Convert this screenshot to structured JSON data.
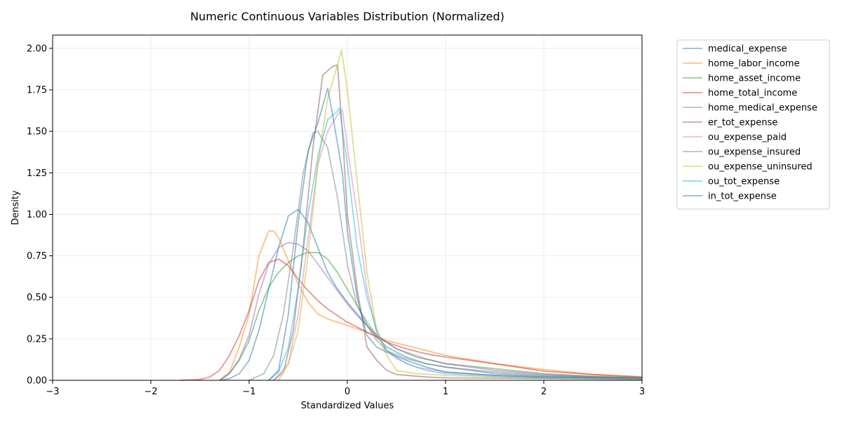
{
  "chart_data": {
    "type": "line",
    "title": "Numeric Continuous Variables Distribution (Normalized)",
    "xlabel": "Standardized Values",
    "ylabel": "Density",
    "xlim": [
      -3,
      3
    ],
    "ylim": [
      0,
      2.08
    ],
    "xticks": [
      -3,
      -2,
      -1,
      0,
      1,
      2,
      3
    ],
    "yticks": [
      0.0,
      0.25,
      0.5,
      0.75,
      1.0,
      1.25,
      1.5,
      1.75,
      2.0
    ],
    "xtick_labels": [
      "−3",
      "−2",
      "−1",
      "0",
      "1",
      "2",
      "3"
    ],
    "ytick_labels": [
      "0.00",
      "0.25",
      "0.50",
      "0.75",
      "1.00",
      "1.25",
      "1.50",
      "1.75",
      "2.00"
    ],
    "grid": true,
    "legend_position": "outside-right-top",
    "series": [
      {
        "name": "medical_expense",
        "color": "#1f77b4",
        "points": [
          [
            -1.3,
            0
          ],
          [
            -1.2,
            0.01
          ],
          [
            -1.1,
            0.04
          ],
          [
            -1.0,
            0.12
          ],
          [
            -0.9,
            0.3
          ],
          [
            -0.8,
            0.55
          ],
          [
            -0.7,
            0.8
          ],
          [
            -0.6,
            0.99
          ],
          [
            -0.5,
            1.03
          ],
          [
            -0.4,
            0.95
          ],
          [
            -0.3,
            0.8
          ],
          [
            -0.2,
            0.65
          ],
          [
            -0.1,
            0.55
          ],
          [
            0.0,
            0.47
          ],
          [
            0.1,
            0.4
          ],
          [
            0.2,
            0.33
          ],
          [
            0.3,
            0.26
          ],
          [
            0.4,
            0.2
          ],
          [
            0.6,
            0.14
          ],
          [
            0.8,
            0.1
          ],
          [
            1.0,
            0.08
          ],
          [
            1.5,
            0.04
          ],
          [
            2.0,
            0.025
          ],
          [
            2.5,
            0.02
          ],
          [
            3.0,
            0.015
          ]
        ]
      },
      {
        "name": "home_labor_income",
        "color": "#ff7f0e",
        "points": [
          [
            -1.3,
            0
          ],
          [
            -1.2,
            0.05
          ],
          [
            -1.1,
            0.2
          ],
          [
            -1.0,
            0.4
          ],
          [
            -0.9,
            0.75
          ],
          [
            -0.8,
            0.9
          ],
          [
            -0.75,
            0.9
          ],
          [
            -0.7,
            0.86
          ],
          [
            -0.6,
            0.72
          ],
          [
            -0.5,
            0.58
          ],
          [
            -0.4,
            0.47
          ],
          [
            -0.3,
            0.4
          ],
          [
            -0.2,
            0.37
          ],
          [
            -0.1,
            0.35
          ],
          [
            0.0,
            0.33
          ],
          [
            0.2,
            0.29
          ],
          [
            0.4,
            0.24
          ],
          [
            0.6,
            0.21
          ],
          [
            0.8,
            0.18
          ],
          [
            1.0,
            0.15
          ],
          [
            1.5,
            0.1
          ],
          [
            2.0,
            0.065
          ],
          [
            2.5,
            0.035
          ],
          [
            3.0,
            0.02
          ]
        ]
      },
      {
        "name": "home_asset_income",
        "color": "#2ca02c",
        "points": [
          [
            -1.3,
            0
          ],
          [
            -1.2,
            0.04
          ],
          [
            -1.1,
            0.12
          ],
          [
            -1.0,
            0.24
          ],
          [
            -0.9,
            0.42
          ],
          [
            -0.8,
            0.56
          ],
          [
            -0.7,
            0.65
          ],
          [
            -0.6,
            0.71
          ],
          [
            -0.5,
            0.75
          ],
          [
            -0.4,
            0.77
          ],
          [
            -0.3,
            0.77
          ],
          [
            -0.2,
            0.73
          ],
          [
            -0.1,
            0.65
          ],
          [
            0.0,
            0.55
          ],
          [
            0.1,
            0.45
          ],
          [
            0.2,
            0.35
          ],
          [
            0.3,
            0.27
          ],
          [
            0.5,
            0.19
          ],
          [
            0.7,
            0.14
          ],
          [
            1.0,
            0.1
          ],
          [
            1.5,
            0.07
          ],
          [
            2.0,
            0.04
          ],
          [
            2.5,
            0.025
          ],
          [
            3.0,
            0.015
          ]
        ]
      },
      {
        "name": "home_total_income",
        "color": "#d62728",
        "points": [
          [
            -1.7,
            0
          ],
          [
            -1.5,
            0.005
          ],
          [
            -1.4,
            0.02
          ],
          [
            -1.3,
            0.06
          ],
          [
            -1.2,
            0.15
          ],
          [
            -1.1,
            0.27
          ],
          [
            -1.0,
            0.42
          ],
          [
            -0.9,
            0.6
          ],
          [
            -0.8,
            0.71
          ],
          [
            -0.7,
            0.73
          ],
          [
            -0.6,
            0.69
          ],
          [
            -0.5,
            0.61
          ],
          [
            -0.4,
            0.54
          ],
          [
            -0.3,
            0.48
          ],
          [
            -0.2,
            0.43
          ],
          [
            -0.1,
            0.39
          ],
          [
            0.0,
            0.35
          ],
          [
            0.2,
            0.29
          ],
          [
            0.4,
            0.23
          ],
          [
            0.6,
            0.19
          ],
          [
            0.8,
            0.16
          ],
          [
            1.0,
            0.14
          ],
          [
            1.5,
            0.1
          ],
          [
            2.0,
            0.055
          ],
          [
            2.5,
            0.035
          ],
          [
            3.0,
            0.02
          ]
        ]
      },
      {
        "name": "home_medical_expense",
        "color": "#9467bd",
        "points": [
          [
            -1.3,
            0
          ],
          [
            -1.2,
            0.04
          ],
          [
            -1.1,
            0.13
          ],
          [
            -1.0,
            0.27
          ],
          [
            -0.9,
            0.52
          ],
          [
            -0.8,
            0.7
          ],
          [
            -0.7,
            0.8
          ],
          [
            -0.6,
            0.83
          ],
          [
            -0.5,
            0.82
          ],
          [
            -0.4,
            0.78
          ],
          [
            -0.3,
            0.7
          ],
          [
            -0.2,
            0.62
          ],
          [
            -0.1,
            0.54
          ],
          [
            0.0,
            0.46
          ],
          [
            0.1,
            0.39
          ],
          [
            0.2,
            0.33
          ],
          [
            0.3,
            0.27
          ],
          [
            0.5,
            0.19
          ],
          [
            0.8,
            0.13
          ],
          [
            1.0,
            0.1
          ],
          [
            1.5,
            0.06
          ],
          [
            2.0,
            0.035
          ],
          [
            2.5,
            0.02
          ],
          [
            3.0,
            0.01
          ]
        ]
      },
      {
        "name": "er_tot_expense",
        "color": "#8c564b",
        "points": [
          [
            -0.75,
            0
          ],
          [
            -0.65,
            0.05
          ],
          [
            -0.55,
            0.3
          ],
          [
            -0.45,
            0.8
          ],
          [
            -0.35,
            1.4
          ],
          [
            -0.25,
            1.84
          ],
          [
            -0.15,
            1.89
          ],
          [
            -0.1,
            1.9
          ],
          [
            -0.05,
            1.5
          ],
          [
            0.0,
            1.0
          ],
          [
            0.1,
            0.55
          ],
          [
            0.2,
            0.2
          ],
          [
            0.3,
            0.12
          ],
          [
            0.4,
            0.06
          ],
          [
            0.5,
            0.035
          ],
          [
            0.8,
            0.02
          ],
          [
            1.0,
            0.015
          ],
          [
            2.0,
            0.01
          ],
          [
            3.0,
            0.005
          ]
        ]
      },
      {
        "name": "ou_expense_paid",
        "color": "#e377c2",
        "points": [
          [
            -0.75,
            0
          ],
          [
            -0.6,
            0.1
          ],
          [
            -0.5,
            0.4
          ],
          [
            -0.4,
            0.85
          ],
          [
            -0.3,
            1.3
          ],
          [
            -0.2,
            1.5
          ],
          [
            -0.1,
            1.6
          ],
          [
            -0.05,
            1.63
          ],
          [
            0.0,
            1.4
          ],
          [
            0.1,
            1.0
          ],
          [
            0.2,
            0.55
          ],
          [
            0.3,
            0.28
          ],
          [
            0.4,
            0.18
          ],
          [
            0.5,
            0.13
          ],
          [
            0.7,
            0.08
          ],
          [
            1.0,
            0.05
          ],
          [
            1.5,
            0.03
          ],
          [
            2.0,
            0.02
          ],
          [
            3.0,
            0.01
          ]
        ]
      },
      {
        "name": "ou_expense_insured",
        "color": "#7f7f7f",
        "points": [
          [
            -1.0,
            0
          ],
          [
            -0.85,
            0.04
          ],
          [
            -0.75,
            0.15
          ],
          [
            -0.65,
            0.4
          ],
          [
            -0.55,
            0.8
          ],
          [
            -0.45,
            1.25
          ],
          [
            -0.35,
            1.49
          ],
          [
            -0.3,
            1.5
          ],
          [
            -0.2,
            1.4
          ],
          [
            -0.1,
            1.1
          ],
          [
            0.0,
            0.7
          ],
          [
            0.1,
            0.45
          ],
          [
            0.2,
            0.33
          ],
          [
            0.3,
            0.24
          ],
          [
            0.4,
            0.18
          ],
          [
            0.6,
            0.13
          ],
          [
            0.8,
            0.1
          ],
          [
            1.0,
            0.08
          ],
          [
            1.5,
            0.05
          ],
          [
            2.0,
            0.03
          ],
          [
            3.0,
            0.015
          ]
        ]
      },
      {
        "name": "ou_expense_uninsured",
        "color": "#bcbd22",
        "points": [
          [
            -0.7,
            0
          ],
          [
            -0.6,
            0.1
          ],
          [
            -0.5,
            0.3
          ],
          [
            -0.4,
            0.75
          ],
          [
            -0.3,
            1.3
          ],
          [
            -0.2,
            1.7
          ],
          [
            -0.1,
            1.9
          ],
          [
            -0.06,
            1.99
          ],
          [
            0.0,
            1.75
          ],
          [
            0.1,
            1.2
          ],
          [
            0.2,
            0.65
          ],
          [
            0.3,
            0.3
          ],
          [
            0.4,
            0.15
          ],
          [
            0.5,
            0.06
          ],
          [
            0.7,
            0.04
          ],
          [
            1.0,
            0.03
          ],
          [
            1.5,
            0.02
          ],
          [
            2.0,
            0.015
          ],
          [
            3.0,
            0.01
          ]
        ]
      },
      {
        "name": "ou_tot_expense",
        "color": "#17becf",
        "points": [
          [
            -0.8,
            0
          ],
          [
            -0.7,
            0.05
          ],
          [
            -0.6,
            0.2
          ],
          [
            -0.5,
            0.55
          ],
          [
            -0.4,
            1.0
          ],
          [
            -0.3,
            1.35
          ],
          [
            -0.2,
            1.57
          ],
          [
            -0.1,
            1.62
          ],
          [
            -0.08,
            1.64
          ],
          [
            0.0,
            1.3
          ],
          [
            0.1,
            0.8
          ],
          [
            0.2,
            0.5
          ],
          [
            0.3,
            0.3
          ],
          [
            0.4,
            0.18
          ],
          [
            0.6,
            0.1
          ],
          [
            0.8,
            0.06
          ],
          [
            1.0,
            0.04
          ],
          [
            1.5,
            0.025
          ],
          [
            2.0,
            0.015
          ],
          [
            3.0,
            0.01
          ]
        ]
      },
      {
        "name": "in_tot_expense",
        "color": "#1f77b4",
        "points": [
          [
            -0.8,
            0
          ],
          [
            -0.7,
            0.06
          ],
          [
            -0.6,
            0.4
          ],
          [
            -0.5,
            0.95
          ],
          [
            -0.4,
            1.38
          ],
          [
            -0.3,
            1.55
          ],
          [
            -0.2,
            1.76
          ],
          [
            -0.15,
            1.6
          ],
          [
            -0.05,
            1.25
          ],
          [
            0.0,
            0.9
          ],
          [
            0.1,
            0.5
          ],
          [
            0.2,
            0.27
          ],
          [
            0.3,
            0.2
          ],
          [
            0.4,
            0.17
          ],
          [
            0.6,
            0.12
          ],
          [
            0.8,
            0.08
          ],
          [
            1.0,
            0.05
          ],
          [
            1.5,
            0.03
          ],
          [
            2.0,
            0.02
          ],
          [
            3.0,
            0.01
          ]
        ]
      }
    ]
  }
}
